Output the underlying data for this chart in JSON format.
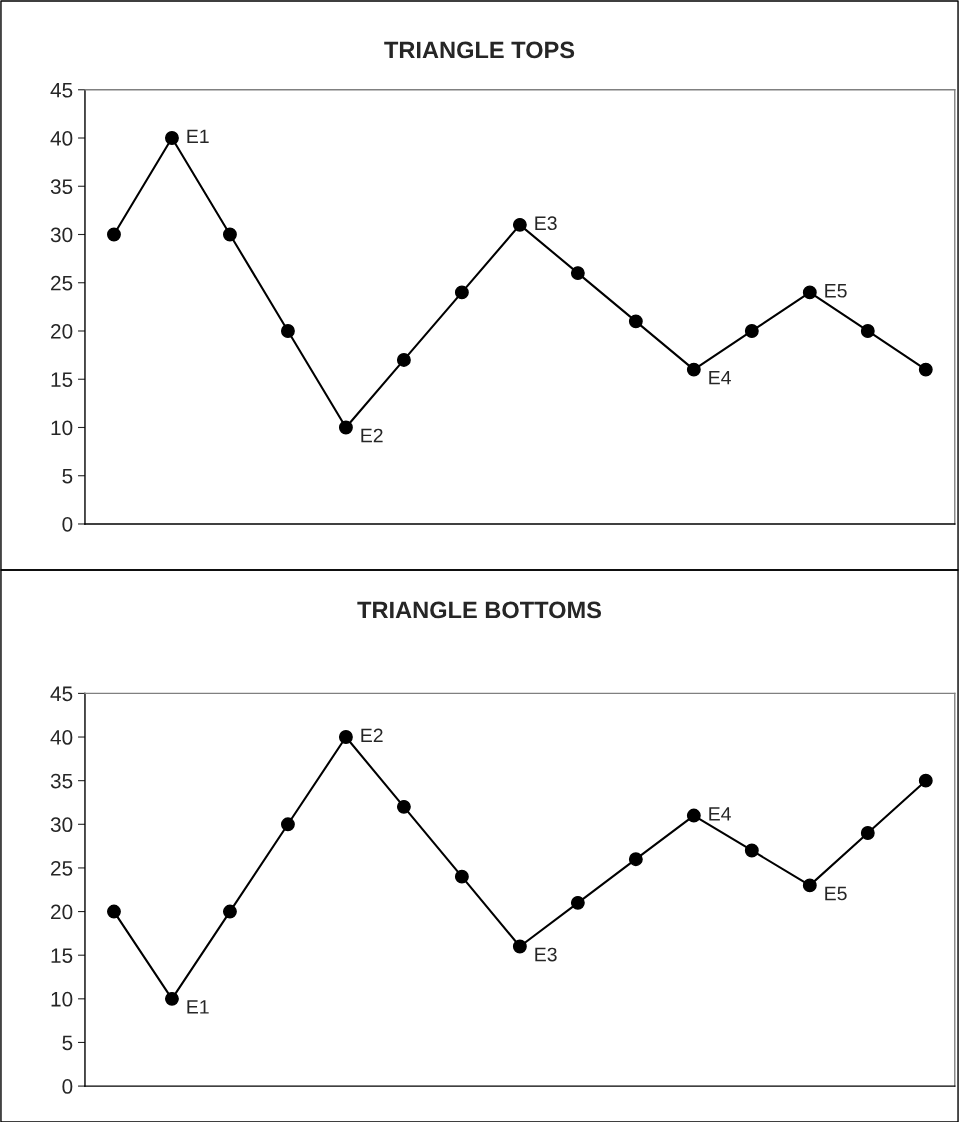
{
  "chart_data": [
    {
      "type": "line",
      "title": "TRIANGLE TOPS",
      "categories": [
        null,
        null,
        null,
        null,
        null,
        null,
        null,
        null,
        null,
        null,
        null,
        null,
        null,
        null,
        null
      ],
      "series": [
        {
          "color": "#000000",
          "values": [
            30,
            40,
            30,
            20,
            10,
            17,
            24,
            31,
            26,
            21,
            16,
            20,
            24,
            20,
            16
          ],
          "value_labels": [
            null,
            "E1",
            null,
            null,
            "E2",
            null,
            null,
            "E3",
            null,
            null,
            "E4",
            null,
            "E5",
            null,
            null
          ]
        }
      ],
      "ylim": [
        0,
        45
      ],
      "yticks": [
        0,
        5,
        10,
        15,
        20,
        25,
        30,
        35,
        40,
        45
      ],
      "marker": "circle",
      "line_style": "solid",
      "grid": false,
      "tick_labels": "y"
    },
    {
      "type": "line",
      "title": "TRIANGLE BOTTOMS",
      "categories": [
        null,
        null,
        null,
        null,
        null,
        null,
        null,
        null,
        null,
        null,
        null,
        null,
        null,
        null,
        null
      ],
      "series": [
        {
          "color": "#000000",
          "values": [
            20,
            10,
            20,
            30,
            40,
            32,
            24,
            16,
            21,
            26,
            31,
            27,
            23,
            29,
            35
          ],
          "value_labels": [
            null,
            "E1",
            null,
            null,
            "E2",
            null,
            null,
            "E3",
            null,
            null,
            "E4",
            null,
            "E5",
            null,
            null
          ]
        }
      ],
      "ylim": [
        0,
        45
      ],
      "yticks": [
        0,
        5,
        10,
        15,
        20,
        25,
        30,
        35,
        40,
        45
      ],
      "marker": "circle",
      "line_style": "solid",
      "grid": false,
      "tick_labels": "y"
    }
  ]
}
